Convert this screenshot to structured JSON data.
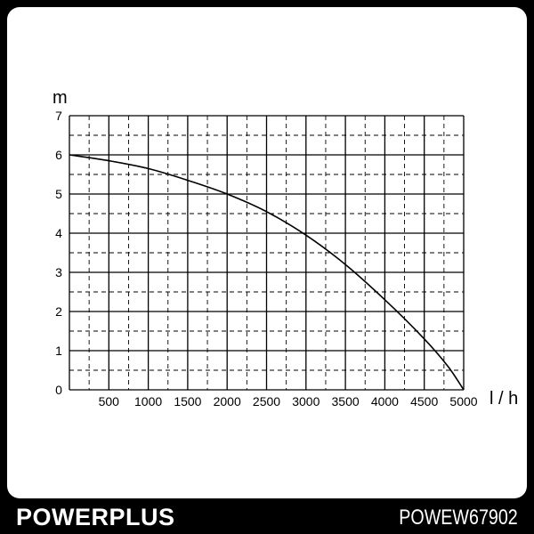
{
  "brand": "POWERPLUS",
  "model": "POWEW67902",
  "colors": {
    "background": "#000000",
    "panel": "#ffffff",
    "line": "#000000"
  },
  "chart_data": {
    "type": "line",
    "xlabel": "l / h",
    "ylabel": "m",
    "xlim": [
      0,
      5000
    ],
    "ylim": [
      0,
      7
    ],
    "x_ticks": [
      "500",
      "1000",
      "1500",
      "2000",
      "2500",
      "3000",
      "3500",
      "4000",
      "4500",
      "5000"
    ],
    "y_ticks": [
      "0",
      "1",
      "2",
      "3",
      "4",
      "5",
      "6",
      "7"
    ],
    "grid": "solid major lines with dashed minor lines",
    "series": [
      {
        "x": [
          0,
          500,
          1000,
          1500,
          2000,
          2500,
          3000,
          3500,
          4000,
          4500,
          4800,
          5000
        ],
        "y": [
          6.0,
          5.85,
          5.65,
          5.35,
          5.0,
          4.55,
          3.95,
          3.2,
          2.3,
          1.3,
          0.6,
          0.0
        ]
      }
    ]
  }
}
